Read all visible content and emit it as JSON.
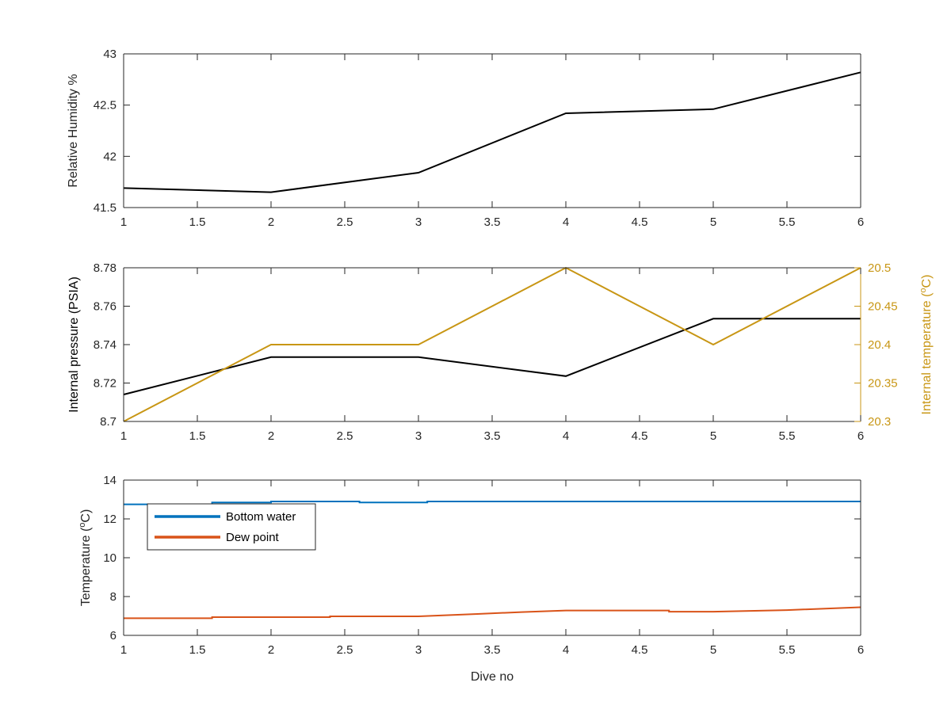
{
  "chart_data": [
    {
      "type": "line",
      "x": [
        1,
        2,
        3,
        4,
        5,
        6
      ],
      "xticks": [
        "1",
        "1.5",
        "2",
        "2.5",
        "3",
        "3.5",
        "4",
        "4.5",
        "5",
        "5.5",
        "6"
      ],
      "xlim": [
        1,
        6
      ],
      "ylabel": "Relative Humidity %",
      "xlabel": "",
      "ylim": [
        41.5,
        43
      ],
      "yticks": [
        "41.5",
        "42",
        "42.5",
        "43"
      ],
      "grid": false,
      "series": [
        {
          "values": [
            41.69,
            41.65,
            41.84,
            42.42,
            42.46,
            42.82
          ],
          "color": "#000000"
        }
      ]
    },
    {
      "type": "line",
      "x": [
        1,
        2,
        3,
        4,
        5,
        6
      ],
      "xticks": [
        "1",
        "1.5",
        "2",
        "2.5",
        "3",
        "3.5",
        "4",
        "4.5",
        "5",
        "5.5",
        "6"
      ],
      "xlim": [
        1,
        6
      ],
      "ylabel": "Internal pressure (PSIA)",
      "ylim": [
        8.7,
        8.78
      ],
      "yticks": [
        "8.7",
        "8.72",
        "8.74",
        "8.76",
        "8.78"
      ],
      "y2label": "Internal temperature (oC)",
      "y2lim": [
        20.3,
        20.5
      ],
      "y2ticks": [
        "20.3",
        "20.35",
        "20.4",
        "20.45",
        "20.5"
      ],
      "grid": false,
      "series": [
        {
          "axis": "left",
          "values": [
            8.714,
            8.7335,
            8.7335,
            8.7236,
            8.7535,
            8.7535
          ],
          "color": "#000000"
        },
        {
          "axis": "right",
          "values": [
            20.3,
            20.4,
            20.4,
            20.5,
            20.4,
            20.5
          ],
          "color": "#c89614"
        }
      ]
    },
    {
      "type": "line",
      "x": [
        1,
        1.6,
        1.6,
        2,
        2.6,
        2.6,
        3.06,
        3.06,
        6
      ],
      "xticks": [
        "1",
        "1.5",
        "2",
        "2.5",
        "3",
        "3.5",
        "4",
        "4.5",
        "5",
        "5.5",
        "6"
      ],
      "xlim": [
        1,
        6
      ],
      "xlabel": "Dive no",
      "ylabel": "Temperature (oC)",
      "ylim": [
        6,
        14
      ],
      "yticks": [
        "6",
        "8",
        "10",
        "12",
        "14"
      ],
      "legend": "top-left",
      "grid": false,
      "series": [
        {
          "name": "Bottom water",
          "color": "#0072bd",
          "points": [
            [
              1,
              12.75
            ],
            [
              1.6,
              12.75
            ],
            [
              1.6,
              12.85
            ],
            [
              2,
              12.85
            ],
            [
              2,
              12.9
            ],
            [
              2.6,
              12.9
            ],
            [
              2.6,
              12.85
            ],
            [
              3.06,
              12.85
            ],
            [
              3.06,
              12.9
            ],
            [
              6,
              12.9
            ]
          ]
        },
        {
          "name": "Dew point",
          "color": "#d95319",
          "points": [
            [
              1,
              6.88
            ],
            [
              1.6,
              6.88
            ],
            [
              1.6,
              6.94
            ],
            [
              2.4,
              6.94
            ],
            [
              2.4,
              6.98
            ],
            [
              3,
              6.98
            ],
            [
              3.4,
              7.1
            ],
            [
              3.7,
              7.2
            ],
            [
              4,
              7.28
            ],
            [
              4.7,
              7.28
            ],
            [
              4.7,
              7.22
            ],
            [
              5,
              7.22
            ],
            [
              5.5,
              7.3
            ],
            [
              6,
              7.45
            ]
          ]
        }
      ]
    }
  ]
}
